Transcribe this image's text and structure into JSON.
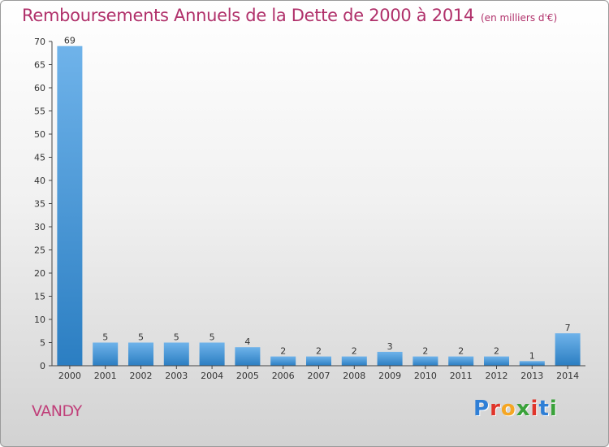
{
  "title": "Remboursements Annuels de la Dette de 2000 à 2014",
  "unit": "(en milliers d'€)",
  "place": "VANDY",
  "logo": {
    "text": "Proxiti",
    "colors": [
      "#2f7fd6",
      "#e0352b",
      "#f5a623",
      "#3aa23a",
      "#e0352b",
      "#2f7fd6",
      "#3aa23a"
    ]
  },
  "colors": {
    "bar_light": "#6fb3ea",
    "bar_dark": "#2b7ec2",
    "title": "#b0306a"
  },
  "chart_data": {
    "type": "bar",
    "categories": [
      "2000",
      "2001",
      "2002",
      "2003",
      "2004",
      "2005",
      "2006",
      "2007",
      "2008",
      "2009",
      "2010",
      "2011",
      "2012",
      "2013",
      "2014"
    ],
    "values": [
      69,
      5,
      5,
      5,
      5,
      4,
      2,
      2,
      2,
      3,
      2,
      2,
      2,
      1,
      7
    ],
    "yticks": [
      0,
      5,
      10,
      15,
      20,
      25,
      30,
      35,
      40,
      45,
      50,
      55,
      60,
      65,
      70
    ],
    "ylim": [
      0,
      70
    ],
    "grid": false,
    "legend": "none",
    "data_labels": true
  }
}
